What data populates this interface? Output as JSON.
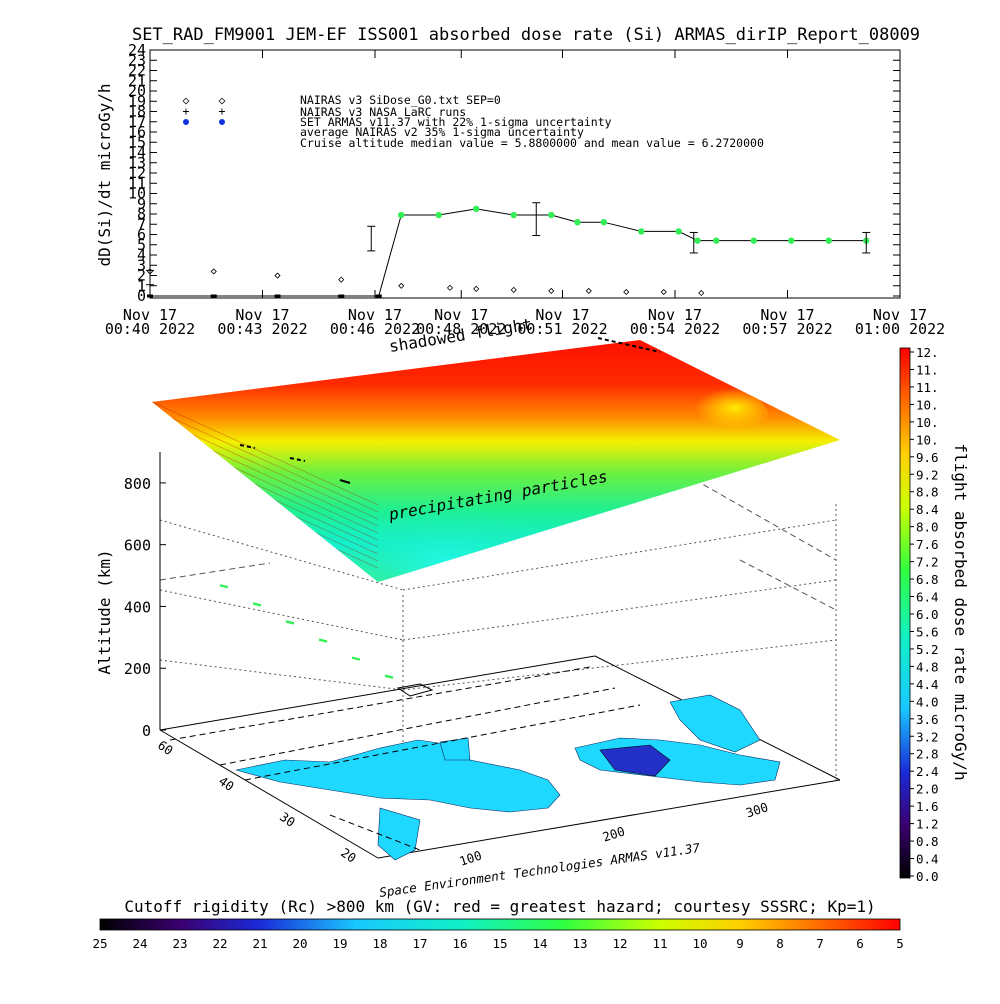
{
  "colors": {
    "background": "#ffffff",
    "line": "#000000",
    "marker_green": "#33ee55",
    "legend_blue": "#1133dd",
    "hazard_red": "#ff0000"
  },
  "chart_data": [
    {
      "type": "line",
      "title": "SET_RAD_FM9001  JEM-EF ISS001 absorbed dose rate (Si) ARMAS_dirIP_Report_08009",
      "ylabel": "dD(Si)/dt microGy/h",
      "xlabel": "",
      "ylim": [
        0,
        24
      ],
      "yticks": [
        "0",
        "1",
        "2",
        "3",
        "4",
        "5",
        "6",
        "7",
        "8",
        "9",
        "10",
        "11",
        "12",
        "13",
        "14",
        "15",
        "16",
        "17",
        "18",
        "19",
        "20",
        "21",
        "22",
        "23",
        "24"
      ],
      "xticks": [
        {
          "line1": "Nov 17",
          "line2": "00:40 2022",
          "minute": 40
        },
        {
          "line1": "Nov 17",
          "line2": "00:43 2022",
          "minute": 43
        },
        {
          "line1": "Nov 17",
          "line2": "00:46 2022",
          "minute": 46
        },
        {
          "line1": "Nov 17",
          "line2": "00:48 2022",
          "minute": 48.3
        },
        {
          "line1": "Nov 17",
          "line2": "00:51 2022",
          "minute": 51
        },
        {
          "line1": "Nov 17",
          "line2": "00:54 2022",
          "minute": 54
        },
        {
          "line1": "Nov 17",
          "line2": "00:57 2022",
          "minute": 57
        },
        {
          "line1": "Nov 17",
          "line2": "01:00 2022",
          "minute": 60
        }
      ],
      "legend": [
        {
          "text": "NAIRAS v3 SiDose_G0.txt SEP=0",
          "symbol": "diamond"
        },
        {
          "text": "NAIRAS v3 NASA LaRC runs",
          "symbol": "plus"
        },
        {
          "text": "SET ARMAS v11.37 with 22% 1-sigma uncertainty",
          "symbol": "dot"
        },
        {
          "text": "average NAIRAS v2 35% 1-sigma uncertainty",
          "symbol": ""
        },
        {
          "text": "Cruise altitude median value = 5.8800000 and mean value = 6.2720000",
          "symbol": ""
        }
      ],
      "series": [
        {
          "name": "SET ARMAS v11.37 with 22% 1-sigma uncertainty",
          "x": [
            40,
            41.7,
            43.4,
            45.1,
            46.1,
            46.7,
            47.7,
            48.7,
            49.7,
            50.7,
            51.4,
            52.1,
            53.1,
            54.1,
            54.6,
            55.1,
            56.1,
            57.1,
            58.1,
            59.1
          ],
          "y": [
            0,
            0,
            0,
            0,
            0,
            7.9,
            7.9,
            8.5,
            7.9,
            7.9,
            7.2,
            7.2,
            6.3,
            6.3,
            5.4,
            5.4,
            5.4,
            5.4,
            5.4,
            5.4
          ],
          "color": "#33ee55",
          "error_bars": [
            {
              "x": 40,
              "y": 1.8,
              "err": 0.7
            },
            {
              "x": 45.9,
              "y": 5.6,
              "err": 1.2
            },
            {
              "x": 50.3,
              "y": 7.5,
              "err": 1.6
            },
            {
              "x": 54.5,
              "y": 5.2,
              "err": 1.0
            },
            {
              "x": 59.1,
              "y": 5.2,
              "err": 1.0
            }
          ]
        },
        {
          "name": "NAIRAS v3 SiDose_G0.txt SEP=0",
          "x": [
            40,
            41.7,
            43.4,
            45.1,
            46.7,
            48.0,
            48.7,
            49.7,
            50.7,
            51.7,
            52.7,
            53.7,
            54.7
          ],
          "y": [
            2.2,
            2.2,
            1.8,
            1.4,
            0.8,
            0.6,
            0.5,
            0.4,
            0.3,
            0.3,
            0.2,
            0.2,
            0.1
          ]
        }
      ]
    },
    {
      "type": "heatmap",
      "title": "",
      "label": "shadowed flight",
      "annotation": "precipitating particles",
      "zlabel": "Altitude (km)",
      "zticks": [
        "0",
        "200",
        "400",
        "600",
        "800"
      ],
      "latitude_ticks": [
        "60",
        "40",
        "30",
        "20"
      ],
      "longitude_ticks": [
        "100",
        "200",
        "300"
      ],
      "credit": "Space Environment Technologies ARMAS v11.37",
      "colorbar_label": "flight absorbed dose rate microGy/h",
      "colorbar_ticks": [
        "12.",
        "11.",
        "11.",
        "10.",
        "10.",
        "10.",
        "9.6",
        "9.2",
        "8.8",
        "8.4",
        "8.0",
        "7.6",
        "7.2",
        "6.8",
        "6.4",
        "6.0",
        "5.6",
        "5.2",
        "4.8",
        "4.4",
        "4.0",
        "3.6",
        "3.2",
        "2.8",
        "2.4",
        "2.0",
        "1.6",
        "1.2",
        "0.8",
        "0.4",
        "0.0"
      ],
      "cutoff_title": "Cutoff rigidity (Rc) >800 km (GV: red = greatest hazard; courtesy SSSRC; Kp=1)",
      "cutoff_ticks": [
        "25",
        "24",
        "23",
        "22",
        "21",
        "20",
        "19",
        "18",
        "17",
        "16",
        "15",
        "14",
        "13",
        "12",
        "11",
        "10",
        "9",
        "8",
        "7",
        "6",
        "5"
      ],
      "track": [
        {
          "altitude_km": 420,
          "dose": 6.3
        },
        {
          "altitude_km": 410,
          "dose": 5.8
        },
        {
          "altitude_km": 400,
          "dose": 5.6
        },
        {
          "altitude_km": 390,
          "dose": 5.4
        },
        {
          "altitude_km": 380,
          "dose": 5.2
        },
        {
          "altitude_km": 370,
          "dose": 5.0
        }
      ]
    }
  ]
}
